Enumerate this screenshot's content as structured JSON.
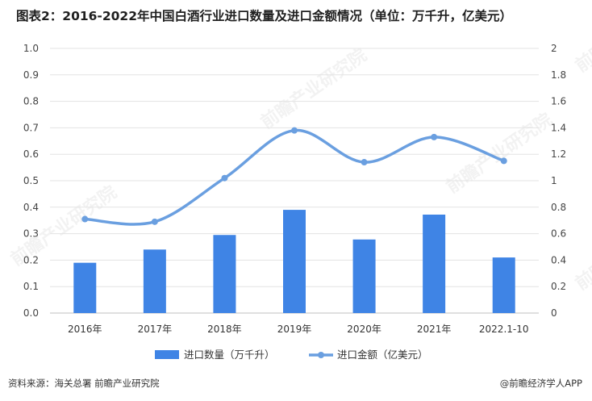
{
  "title": "图表2：2016-2022年中国白酒行业进口数量及进口金额情况（单位：万千升，亿美元）",
  "footer": {
    "source": "资料来源：海关总署 前瞻产业研究院",
    "brand": "@前瞻经济学人APP"
  },
  "watermark": "前瞻产业研究院",
  "chart_data": {
    "type": "bar",
    "categories": [
      "2016年",
      "2017年",
      "2018年",
      "2019年",
      "2020年",
      "2021年",
      "2022.1-10"
    ],
    "series": [
      {
        "name": "进口数量（万千升）",
        "type": "bar",
        "axis": "left",
        "color": "#3f84e5",
        "values": [
          0.19,
          0.24,
          0.295,
          0.39,
          0.278,
          0.372,
          0.21
        ]
      },
      {
        "name": "进口金额（亿美元）",
        "type": "line",
        "axis": "right",
        "color": "#6a9fe0",
        "values": [
          0.71,
          0.69,
          1.02,
          1.38,
          1.14,
          1.33,
          1.15
        ]
      }
    ],
    "y_left": {
      "min": 0,
      "max": 1.0,
      "step": 0.1,
      "ticks": [
        "0.0",
        "0.1",
        "0.2",
        "0.3",
        "0.4",
        "0.5",
        "0.6",
        "0.7",
        "0.8",
        "0.9",
        "1.0"
      ]
    },
    "y_right": {
      "min": 0,
      "max": 2,
      "step": 0.2,
      "ticks": [
        "0",
        "0.2",
        "0.4",
        "0.6",
        "0.8",
        "1",
        "1.2",
        "1.4",
        "1.6",
        "1.8",
        "2"
      ]
    },
    "grid": true,
    "legend_position": "bottom"
  }
}
